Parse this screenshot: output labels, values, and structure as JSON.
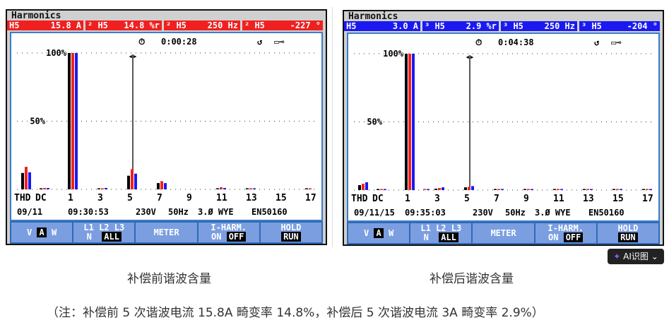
{
  "screens": [
    {
      "title": "Harmonics",
      "readouts": [
        [
          "H5",
          "15.8 A"
        ],
        [
          "² H5",
          "14.8 %r"
        ],
        [
          "² H5",
          "250 Hz"
        ],
        [
          "² H5",
          "-227 °"
        ]
      ],
      "readout_color": "#f02020",
      "timer": "0:00:28",
      "date": "09/11",
      "time": "09:30:53",
      "voltage": "230V",
      "freq": "50Hz",
      "config": "3.Ø WYE",
      "standard": "EN50160",
      "caption": "补偿前谐波含量"
    },
    {
      "title": "Harmonics",
      "readouts": [
        [
          "H5",
          "3.0 A"
        ],
        [
          "³ H5",
          "2.9 %r"
        ],
        [
          "³ H5",
          "250 Hz"
        ],
        [
          "³ H5",
          "-204 °"
        ]
      ],
      "readout_color": "#1a1af0",
      "timer": "0:04:38",
      "date": "09/11/15",
      "time": "09:35:03",
      "voltage": "230V",
      "freq": "50Hz",
      "config": "3.Ø WYE",
      "standard": "EN50160",
      "caption": "补偿后谐波含量"
    }
  ],
  "footer_keys": {
    "vaw": [
      "V",
      "A",
      "W"
    ],
    "phase_top": "L1  L2  L3",
    "phase_n": "N",
    "phase_all": "ALL",
    "meter": "METER",
    "iharm": "I-HARM.",
    "on": "ON",
    "off": "OFF",
    "hold": "HOLD",
    "run": "RUN"
  },
  "ai_button": "AI识图",
  "note": "（注：补偿前 5 次谐波电流 15.8A 畸变率 14.8%，补偿后 5 次谐波电流 3A 畸变率 2.9%）",
  "chart_data": [
    {
      "type": "bar",
      "categories": [
        "THD",
        "DC",
        "1",
        "2",
        "3",
        "4",
        "5",
        "6",
        "7",
        "8",
        "9",
        "10",
        "11",
        "12",
        "13",
        "14",
        "15",
        "16",
        "17"
      ],
      "tick_labels": [
        "THD",
        "DC",
        "1",
        "3",
        "5",
        "7",
        "9",
        "11",
        "13",
        "15",
        "17"
      ],
      "y_ticks": [
        "100%",
        "50%"
      ],
      "ylim": [
        0,
        100
      ],
      "cursor": "5",
      "colors": [
        "#000000",
        "#f02020",
        "#1a1af0"
      ],
      "series": [
        {
          "name": "L1",
          "values": [
            12,
            0.5,
            100,
            0,
            0.5,
            0,
            10,
            0,
            4.6,
            0,
            0,
            0,
            0.8,
            0,
            0.8,
            0,
            0,
            0,
            0.3
          ]
        },
        {
          "name": "L2",
          "values": [
            16.5,
            1,
            100,
            0,
            0.5,
            0,
            14.8,
            0,
            6,
            0,
            0,
            0,
            1.5,
            0,
            0.8,
            0,
            0,
            0,
            0.5
          ]
        },
        {
          "name": "L3",
          "values": [
            12.5,
            1,
            100,
            0,
            1,
            0,
            11.5,
            0,
            4.6,
            0,
            0,
            0,
            1,
            0,
            0.8,
            0,
            0,
            0,
            0
          ]
        }
      ]
    },
    {
      "type": "bar",
      "categories": [
        "THD",
        "DC",
        "1",
        "2",
        "3",
        "4",
        "5",
        "6",
        "7",
        "8",
        "9",
        "10",
        "11",
        "12",
        "13",
        "14",
        "15",
        "16",
        "17"
      ],
      "tick_labels": [
        "THD",
        "DC",
        "1",
        "3",
        "5",
        "7",
        "9",
        "11",
        "13",
        "15",
        "17"
      ],
      "y_ticks": [
        "100%",
        "50%"
      ],
      "ylim": [
        0,
        100
      ],
      "cursor": "5",
      "colors": [
        "#000000",
        "#f02020",
        "#1a1af0"
      ],
      "series": [
        {
          "name": "L1",
          "values": [
            3.6,
            0.3,
            100,
            0,
            1,
            0,
            2,
            0,
            0.3,
            0,
            0.3,
            0,
            0.5,
            0,
            0.3,
            0,
            0.3,
            0,
            0.3
          ]
        },
        {
          "name": "L2",
          "values": [
            4.6,
            0.5,
            100,
            0.3,
            1.5,
            0,
            2.3,
            0,
            0.8,
            0,
            0.5,
            0,
            0.8,
            0,
            0.5,
            0,
            0.5,
            0,
            0.5
          ]
        },
        {
          "name": "L3",
          "values": [
            5.7,
            0.5,
            100,
            0.3,
            2,
            0,
            2.9,
            0,
            0.8,
            0,
            0.5,
            0,
            0.5,
            0,
            0.5,
            0,
            0.5,
            0,
            0.5
          ]
        }
      ]
    }
  ]
}
